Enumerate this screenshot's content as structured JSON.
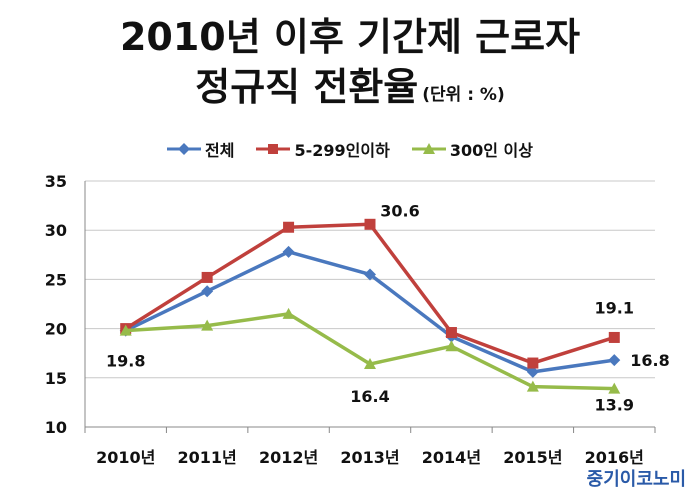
{
  "title_line1": "2010년 이후 기간제 근로자",
  "title_line2": "정규직 전환율",
  "title_unit": "(단위 : %)",
  "brand": "중기이코노미",
  "chart_data": {
    "type": "line",
    "categories": [
      "2010년",
      "2011년",
      "2012년",
      "2013년",
      "2014년",
      "2015년",
      "2016년"
    ],
    "ylim": [
      10,
      35
    ],
    "yticks": [
      10,
      15,
      20,
      25,
      30,
      35
    ],
    "grid": true,
    "legend_position": "top",
    "series": [
      {
        "name": "전체",
        "color": "#4a78be",
        "marker": "diamond",
        "values": [
          19.8,
          23.8,
          27.8,
          25.5,
          19.2,
          15.6,
          16.8
        ]
      },
      {
        "name": "5-299인이하",
        "color": "#c0403c",
        "marker": "square",
        "values": [
          20.0,
          25.2,
          30.3,
          30.6,
          19.6,
          16.5,
          19.1
        ]
      },
      {
        "name": "300인 이상",
        "color": "#96bb4a",
        "marker": "triangle",
        "values": [
          19.8,
          20.3,
          21.5,
          16.4,
          18.2,
          14.1,
          13.9
        ]
      }
    ],
    "annotations": [
      {
        "text": "19.8",
        "series": 0,
        "index": 0
      },
      {
        "text": "30.6",
        "series": 1,
        "index": 3
      },
      {
        "text": "16.4",
        "series": 2,
        "index": 3
      },
      {
        "text": "19.1",
        "series": 1,
        "index": 6
      },
      {
        "text": "16.8",
        "series": 0,
        "index": 6
      },
      {
        "text": "13.9",
        "series": 2,
        "index": 6
      }
    ]
  }
}
